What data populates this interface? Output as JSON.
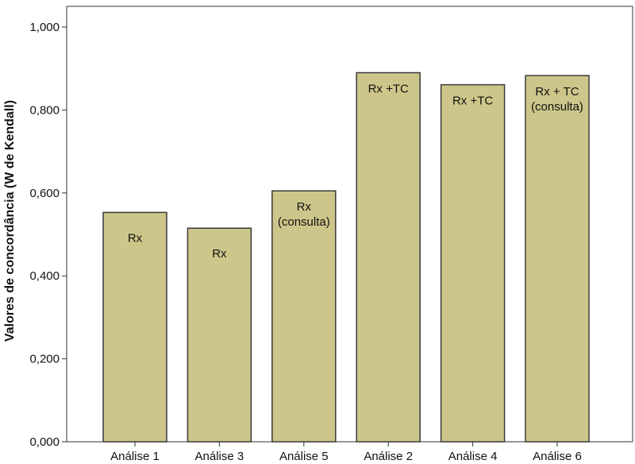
{
  "chart_data": {
    "type": "bar",
    "title": "",
    "xlabel": "",
    "ylabel": "Valores de concordância (W de Kendall)",
    "ylim": [
      0,
      1.05
    ],
    "yticks": [
      0,
      0.2,
      0.4,
      0.6,
      0.8,
      1.0
    ],
    "ytick_labels": [
      "0,000",
      "0,200",
      "0,400",
      "0,600",
      "0,800",
      "1,000"
    ],
    "categories": [
      "Análise 1",
      "Análise 3",
      "Análise 5",
      "Análise 2",
      "Análise 4",
      "Análise 6"
    ],
    "values": [
      0.553,
      0.515,
      0.605,
      0.89,
      0.861,
      0.883
    ],
    "bar_labels": [
      [
        "Rx"
      ],
      [
        "Rx"
      ],
      [
        "Rx",
        "(consulta)"
      ],
      [
        "Rx +TC"
      ],
      [
        "Rx +TC"
      ],
      [
        "Rx + TC",
        "(consulta)"
      ]
    ],
    "grid": false,
    "legend": "none",
    "colors": {
      "bar_fill": "#cdc68a",
      "bar_stroke": "#3a3a3a",
      "axis": "#333333"
    }
  }
}
